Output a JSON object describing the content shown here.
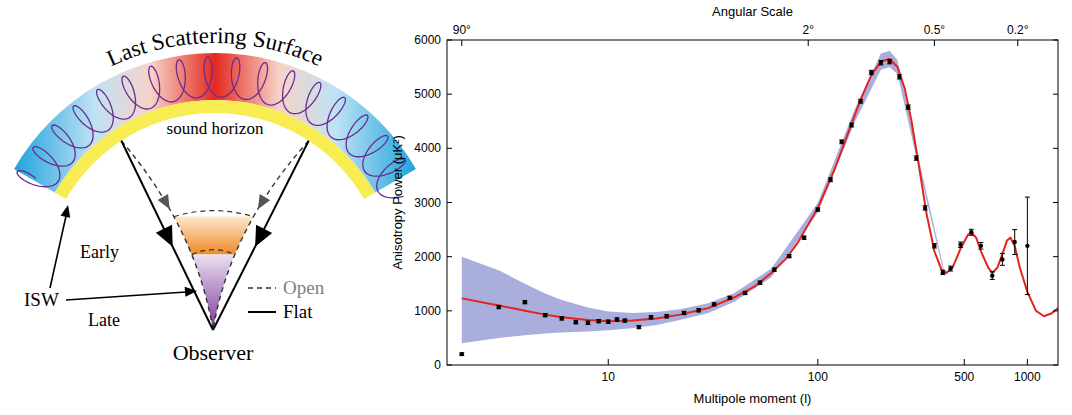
{
  "chart_data": {
    "type": "line",
    "x2label": "Angular Scale",
    "xlabel": "Multipole moment (l)",
    "ylabel": "Anisotropy Power (μK²)",
    "log": "x",
    "grid": false,
    "xlim": [
      1.7,
      1400
    ],
    "xticks": [
      10,
      100,
      500,
      1000
    ],
    "x2lim": [
      1.7,
      1400
    ],
    "x2ticks": [
      {
        "value": 2,
        "label": "90°"
      },
      {
        "value": 90,
        "label": "2°"
      },
      {
        "value": 360,
        "label": "0.5°"
      },
      {
        "value": 900,
        "label": "0.2°"
      }
    ],
    "ylim": [
      0,
      6000
    ],
    "yticks": [
      0,
      1000,
      2000,
      3000,
      4000,
      5000,
      6000
    ],
    "series": [
      {
        "type": "area",
        "color": "#a9aedc",
        "x": [
          2,
          3,
          4,
          5,
          6,
          8,
          10,
          13,
          17,
          22,
          30,
          40,
          60,
          100,
          150,
          200,
          220,
          240,
          300,
          400
        ],
        "lower": [
          400,
          500,
          550,
          580,
          600,
          620,
          640,
          680,
          740,
          830,
          960,
          1170,
          1620,
          2810,
          4480,
          5450,
          5500,
          5370,
          3720,
          1680
        ],
        "upper": [
          2000,
          1750,
          1500,
          1320,
          1200,
          1060,
          990,
          960,
          980,
          1030,
          1140,
          1330,
          1780,
          2990,
          4720,
          5750,
          5800,
          5630,
          3880,
          1760
        ]
      },
      {
        "type": "line",
        "color": "#e3241b",
        "line_style": "solid",
        "x": [
          2,
          3,
          4,
          5,
          6,
          8,
          10,
          13,
          17,
          22,
          30,
          40,
          50,
          60,
          70,
          80,
          100,
          120,
          140,
          160,
          180,
          200,
          220,
          240,
          260,
          280,
          300,
          330,
          360,
          390,
          410,
          440,
          480,
          520,
          540,
          570,
          600,
          650,
          680,
          720,
          760,
          800,
          830,
          870,
          920,
          1000,
          1100,
          1200,
          1300,
          1400
        ],
        "values": [
          1230,
          1100,
          1000,
          930,
          880,
          830,
          810,
          820,
          860,
          930,
          1050,
          1250,
          1450,
          1700,
          1950,
          2250,
          2900,
          3600,
          4300,
          4900,
          5350,
          5600,
          5650,
          5500,
          5100,
          4500,
          3800,
          2800,
          2100,
          1750,
          1700,
          1800,
          2150,
          2400,
          2450,
          2350,
          2100,
          1800,
          1700,
          1800,
          2050,
          2300,
          2350,
          2200,
          1800,
          1350,
          1000,
          900,
          950,
          1050
        ]
      },
      {
        "type": "scatter",
        "color": "#000000",
        "marker": "circle",
        "x": [
          2,
          3,
          4,
          5,
          6,
          7,
          8,
          9,
          10,
          11,
          12,
          14,
          16,
          19,
          23,
          27,
          32,
          38,
          45,
          53,
          62,
          73,
          86,
          100,
          115,
          130,
          145,
          160,
          180,
          200,
          220,
          245,
          270,
          295,
          325,
          360,
          395,
          430,
          480,
          540,
          600,
          680,
          760,
          870,
          1000
        ],
        "values": [
          200,
          1070,
          1160,
          920,
          860,
          790,
          780,
          810,
          800,
          840,
          820,
          700,
          880,
          900,
          960,
          1010,
          1120,
          1240,
          1330,
          1520,
          1760,
          2010,
          2350,
          2870,
          3420,
          4120,
          4430,
          4870,
          5400,
          5580,
          5600,
          5320,
          4760,
          3820,
          2900,
          2200,
          1710,
          1780,
          2220,
          2450,
          2200,
          1650,
          1950,
          2270,
          2200
        ],
        "errors": [
          25,
          30,
          30,
          30,
          30,
          30,
          30,
          30,
          30,
          30,
          30,
          30,
          30,
          30,
          30,
          30,
          30,
          30,
          30,
          30,
          30,
          30,
          30,
          30,
          35,
          35,
          35,
          35,
          40,
          40,
          40,
          40,
          40,
          40,
          40,
          40,
          40,
          45,
          50,
          55,
          60,
          70,
          110,
          230,
          900
        ]
      }
    ]
  },
  "diagram": {
    "arc_label": "Last Scattering Surface",
    "horizon_label": "sound horizon",
    "isw_label": "ISW",
    "isw_early": "Early",
    "isw_late": "Late",
    "observer": "Observer",
    "legend": [
      {
        "label": "Open",
        "line_style": "dashed",
        "color": "#808080"
      },
      {
        "label": "Flat",
        "line_style": "solid",
        "color": "#000000"
      }
    ]
  }
}
